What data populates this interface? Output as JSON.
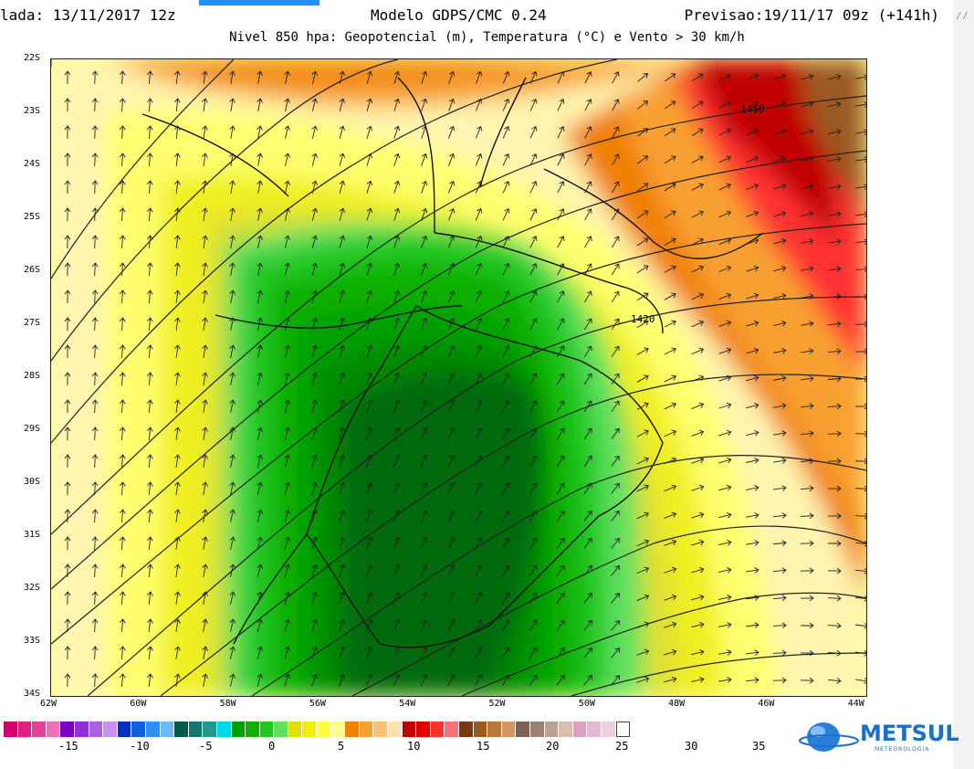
{
  "header": {
    "left": "lada: 13/11/2017 12z",
    "center": "Modelo GDPS/CMC 0.24",
    "right": "Previsao:19/11/17 09z (+141h)",
    "subtitle": "Nivel 850 hpa: Geopotencial (m), Temperatura (°C) e Vento > 30 km/h"
  },
  "lat_labels": [
    "22S",
    "23S",
    "24S",
    "25S",
    "26S",
    "27S",
    "28S",
    "29S",
    "30S",
    "31S",
    "32S",
    "33S",
    "34S"
  ],
  "lon_labels": [
    "62W",
    "60W",
    "58W",
    "56W",
    "54W",
    "52W",
    "50W",
    "48W",
    "46W",
    "44W"
  ],
  "contour_labels": [
    "1450",
    "1420"
  ],
  "colorbar": {
    "colors": [
      "#d4006f",
      "#e0207f",
      "#e8409a",
      "#ef70b8",
      "#7a00c8",
      "#8f30d8",
      "#a860e0",
      "#c890f0",
      "#0030c8",
      "#1060e0",
      "#3090f0",
      "#70b8f8",
      "#005a50",
      "#107870",
      "#209890",
      "#00d8e8",
      "#00a000",
      "#10b000",
      "#20c820",
      "#60e060",
      "#e0e000",
      "#f0f000",
      "#ffff40",
      "#ffff90",
      "#f08000",
      "#f8a030",
      "#ffc070",
      "#ffe0b0",
      "#c00000",
      "#e00000",
      "#ff3030",
      "#ff7070",
      "#7a3a10",
      "#9a5a20",
      "#b87838",
      "#d09860",
      "#806050",
      "#a08070",
      "#c0a090",
      "#d8c0b0",
      "#e0a0c0",
      "#e8b8d0",
      "#f0d0e0",
      "#ffffff"
    ],
    "labels": [
      "-15",
      "-10",
      "-5",
      "0",
      "5",
      "10",
      "15",
      "20",
      "25",
      "30",
      "35"
    ]
  },
  "logo": {
    "text": "METSUL",
    "sub": "METEOROLOGIA"
  },
  "colors": {
    "tab": "#1e90ff",
    "logo": "#1a6fc9"
  }
}
